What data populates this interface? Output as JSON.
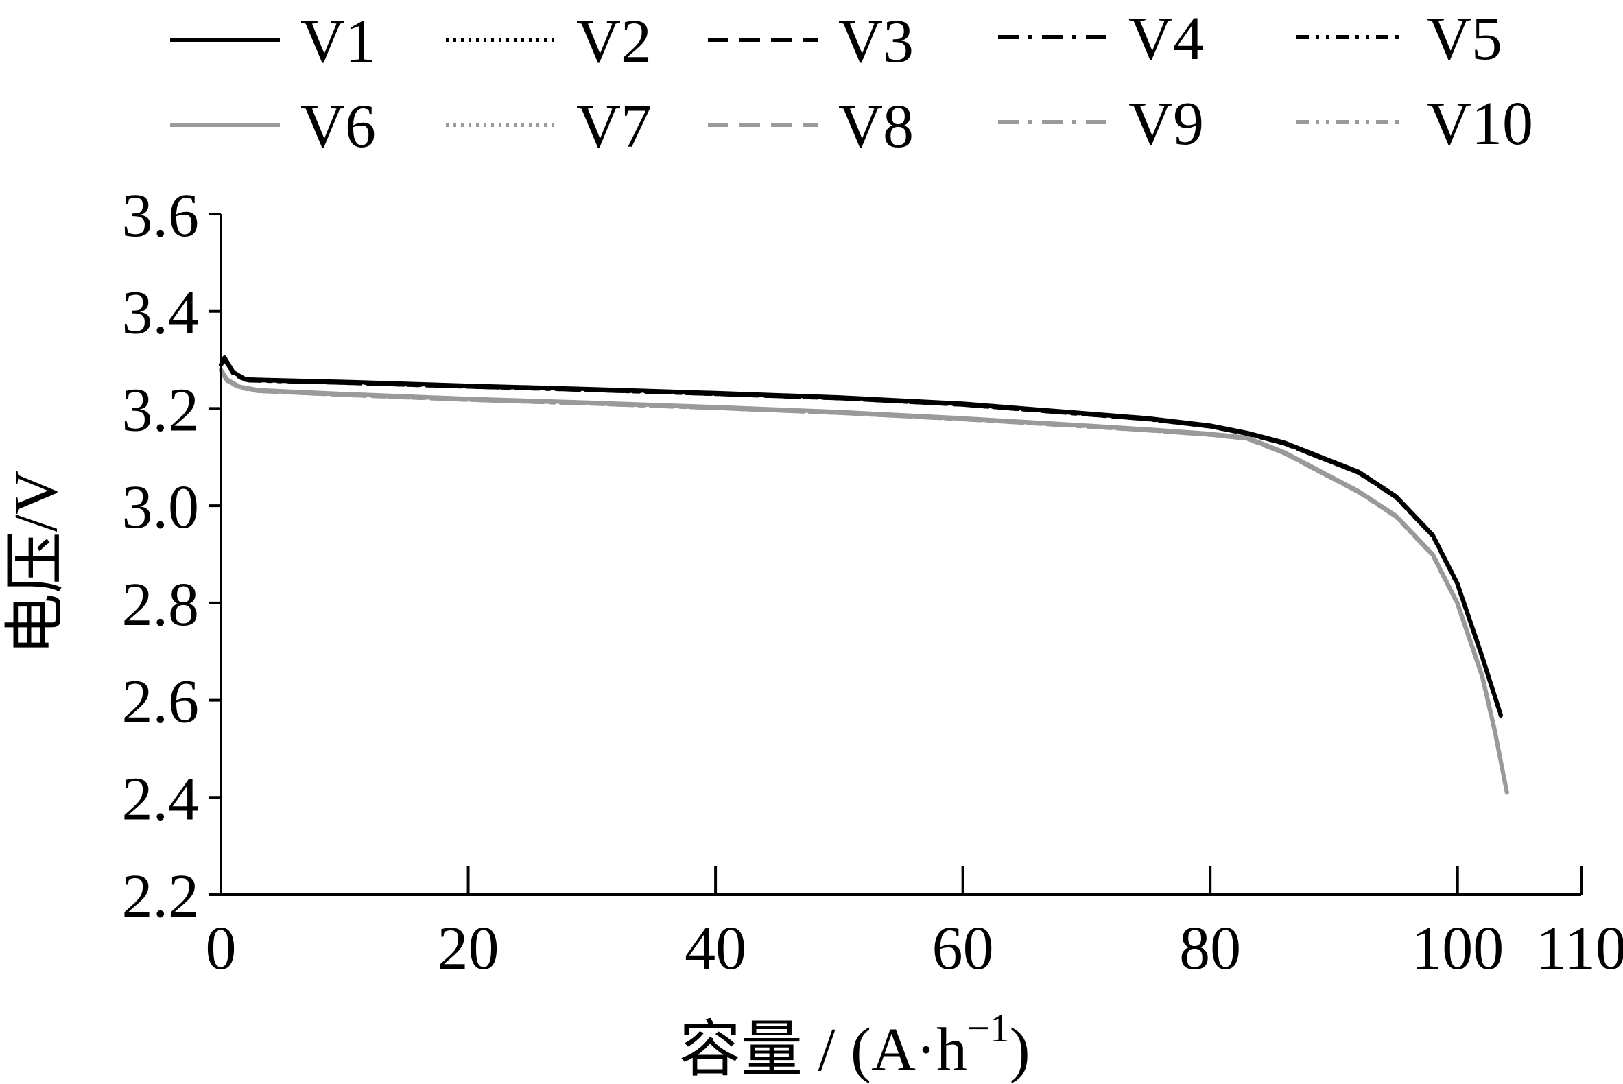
{
  "chart_data": {
    "type": "line",
    "title": "",
    "xlabel": "容量 / (A·h",
    "xlabel_sup": "−1",
    "xlabel_close": ")",
    "ylabel": "电压/V",
    "xlim": [
      0,
      110
    ],
    "ylim": [
      2.2,
      3.6
    ],
    "xticks": [
      0,
      20,
      40,
      60,
      80,
      100,
      110
    ],
    "xtick_labels": [
      "0",
      "20",
      "40",
      "60",
      "80",
      "100",
      "110"
    ],
    "yticks": [
      2.2,
      2.4,
      2.6,
      2.8,
      3.0,
      3.2,
      3.4,
      3.6
    ],
    "ytick_labels": [
      "2.2",
      "2.4",
      "2.6",
      "2.8",
      "3.0",
      "3.2",
      "3.4",
      "3.6"
    ],
    "grid": false,
    "legend_placement": "top, above plot, 2 rows",
    "series": [
      {
        "name": "V1",
        "color": "#000000",
        "dash": "solid",
        "x": [
          0,
          0.3,
          1,
          2,
          10,
          20,
          30,
          40,
          50,
          60,
          70,
          75,
          80,
          83,
          86,
          89,
          92,
          95,
          98,
          100,
          102,
          103.5
        ],
        "y": [
          3.29,
          3.305,
          3.275,
          3.26,
          3.255,
          3.247,
          3.24,
          3.232,
          3.223,
          3.21,
          3.19,
          3.18,
          3.165,
          3.15,
          3.13,
          3.1,
          3.07,
          3.02,
          2.94,
          2.84,
          2.69,
          2.57
        ]
      },
      {
        "name": "V2",
        "color": "#000000",
        "dash": "dotted",
        "x": [
          0,
          0.3,
          1,
          2,
          10,
          20,
          30,
          40,
          50,
          60,
          70,
          75,
          80,
          83,
          86,
          89,
          92,
          95,
          98,
          100,
          102,
          103.5
        ],
        "y": [
          3.29,
          3.303,
          3.274,
          3.26,
          3.254,
          3.246,
          3.239,
          3.231,
          3.222,
          3.209,
          3.189,
          3.179,
          3.164,
          3.149,
          3.129,
          3.099,
          3.069,
          3.019,
          2.939,
          2.839,
          2.689,
          2.569
        ]
      },
      {
        "name": "V3",
        "color": "#000000",
        "dash": "dashed",
        "x": [
          0,
          0.3,
          1,
          2,
          10,
          20,
          30,
          40,
          50,
          60,
          70,
          75,
          80,
          83,
          86,
          89,
          92,
          95,
          98,
          100,
          102,
          103.5
        ],
        "y": [
          3.29,
          3.302,
          3.273,
          3.259,
          3.254,
          3.246,
          3.239,
          3.231,
          3.222,
          3.209,
          3.189,
          3.179,
          3.164,
          3.149,
          3.129,
          3.099,
          3.069,
          3.019,
          2.939,
          2.839,
          2.689,
          2.57
        ]
      },
      {
        "name": "V4",
        "color": "#000000",
        "dash": "dashdot",
        "x": [
          0,
          0.3,
          1,
          2,
          10,
          20,
          30,
          40,
          50,
          60,
          70,
          75,
          80,
          83,
          86,
          89,
          92,
          95,
          98,
          100,
          102,
          103.5
        ],
        "y": [
          3.29,
          3.302,
          3.273,
          3.259,
          3.253,
          3.245,
          3.238,
          3.23,
          3.221,
          3.208,
          3.188,
          3.178,
          3.163,
          3.148,
          3.128,
          3.098,
          3.068,
          3.018,
          2.938,
          2.838,
          2.688,
          2.568
        ]
      },
      {
        "name": "V5",
        "color": "#000000",
        "dash": "dashdotdot",
        "x": [
          0,
          0.3,
          1,
          2,
          10,
          20,
          30,
          40,
          50,
          60,
          70,
          75,
          80,
          83,
          86,
          89,
          92,
          95,
          98,
          100,
          102,
          103.5
        ],
        "y": [
          3.29,
          3.301,
          3.272,
          3.258,
          3.253,
          3.245,
          3.238,
          3.23,
          3.221,
          3.208,
          3.188,
          3.178,
          3.163,
          3.148,
          3.128,
          3.098,
          3.068,
          3.018,
          2.938,
          2.838,
          2.688,
          2.569
        ]
      },
      {
        "name": "V6",
        "color": "#9a9a9a",
        "dash": "solid",
        "x": [
          0,
          0.5,
          1.5,
          3,
          10,
          20,
          30,
          40,
          50,
          60,
          70,
          75,
          80,
          83,
          86,
          89,
          92,
          95,
          98,
          100,
          102,
          103,
          104
        ],
        "y": [
          3.28,
          3.26,
          3.245,
          3.238,
          3.23,
          3.22,
          3.212,
          3.203,
          3.193,
          3.18,
          3.165,
          3.157,
          3.148,
          3.14,
          3.11,
          3.07,
          3.03,
          2.98,
          2.9,
          2.8,
          2.65,
          2.54,
          2.41
        ]
      },
      {
        "name": "V7",
        "color": "#9a9a9a",
        "dash": "dotted",
        "x": [
          0,
          0.5,
          1.5,
          3,
          10,
          20,
          30,
          40,
          50,
          60,
          70,
          75,
          80,
          83,
          86,
          89,
          92,
          95,
          98,
          100,
          102,
          103,
          104
        ],
        "y": [
          3.279,
          3.259,
          3.244,
          3.237,
          3.229,
          3.219,
          3.211,
          3.202,
          3.192,
          3.179,
          3.164,
          3.156,
          3.147,
          3.139,
          3.109,
          3.069,
          3.029,
          2.979,
          2.899,
          2.799,
          2.649,
          2.539,
          2.41
        ]
      },
      {
        "name": "V8",
        "color": "#9a9a9a",
        "dash": "dashed",
        "x": [
          0,
          0.5,
          1.5,
          3,
          10,
          20,
          30,
          40,
          50,
          60,
          70,
          75,
          80,
          83,
          86,
          89,
          92,
          95,
          98,
          100,
          102,
          103,
          104
        ],
        "y": [
          3.279,
          3.258,
          3.244,
          3.237,
          3.229,
          3.219,
          3.211,
          3.202,
          3.192,
          3.179,
          3.164,
          3.156,
          3.147,
          3.139,
          3.109,
          3.069,
          3.029,
          2.979,
          2.899,
          2.799,
          2.649,
          2.539,
          2.41
        ]
      },
      {
        "name": "V9",
        "color": "#9a9a9a",
        "dash": "dashdot",
        "x": [
          0,
          0.5,
          1.5,
          3,
          10,
          20,
          30,
          40,
          50,
          60,
          70,
          75,
          80,
          83,
          86,
          89,
          92,
          95,
          98,
          100,
          102,
          103,
          104
        ],
        "y": [
          3.278,
          3.258,
          3.243,
          3.236,
          3.228,
          3.218,
          3.21,
          3.201,
          3.191,
          3.178,
          3.163,
          3.155,
          3.146,
          3.138,
          3.108,
          3.068,
          3.028,
          2.978,
          2.898,
          2.798,
          2.648,
          2.538,
          2.41
        ]
      },
      {
        "name": "V10",
        "color": "#9a9a9a",
        "dash": "dashdotdot",
        "x": [
          0,
          0.5,
          1.5,
          3,
          10,
          20,
          30,
          40,
          50,
          60,
          70,
          75,
          80,
          83,
          86,
          89,
          92,
          95,
          98,
          100,
          102,
          103,
          104
        ],
        "y": [
          3.278,
          3.257,
          3.243,
          3.236,
          3.228,
          3.218,
          3.21,
          3.201,
          3.191,
          3.178,
          3.163,
          3.155,
          3.146,
          3.138,
          3.108,
          3.068,
          3.028,
          2.978,
          2.898,
          2.798,
          2.648,
          2.538,
          2.41
        ]
      }
    ]
  }
}
